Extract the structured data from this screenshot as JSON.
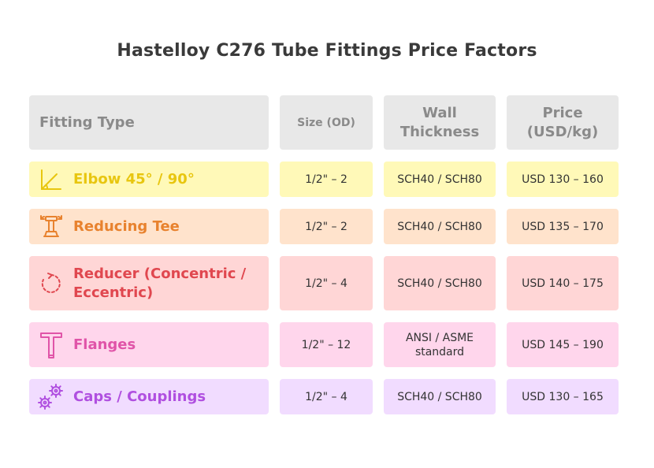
{
  "title": "Hastelloy C276 Tube Fittings Price Factors",
  "headers": {
    "fitting_type": "Fitting Type",
    "size": "Size (OD)",
    "wall_thickness": "Wall Thickness",
    "price": "Price (USD/kg)"
  },
  "rows": [
    {
      "icon": "angle-icon",
      "fitting_type": "Elbow 45° / 90°",
      "size": "1/2\" – 2",
      "wall_thickness": "SCH40 / SCH80",
      "price": "USD 130 – 160",
      "bg": "#fff9b8",
      "accent": "#e8c60f"
    },
    {
      "icon": "tee-icon",
      "fitting_type": "Reducing Tee",
      "size": "1/2\" – 2",
      "wall_thickness": "SCH40 / SCH80",
      "price": "USD 135 – 170",
      "bg": "#ffe3cc",
      "accent": "#e8822e"
    },
    {
      "icon": "rotate-icon",
      "fitting_type": "Reducer (Concentric / Eccentric)",
      "size": "1/2\" – 4",
      "wall_thickness": "SCH40 / SCH80",
      "price": "USD 140 – 175",
      "bg": "#ffd6d6",
      "accent": "#e0474f"
    },
    {
      "icon": "t-pipe-icon",
      "fitting_type": "Flanges",
      "size": "1/2\" – 12",
      "wall_thickness": "ANSI / ASME standard",
      "price": "USD 145 – 190",
      "bg": "#ffd6ec",
      "accent": "#e054a8"
    },
    {
      "icon": "gears-icon",
      "fitting_type": "Caps / Couplings",
      "size": "1/2\" – 4",
      "wall_thickness": "SCH40 / SCH80",
      "price": "USD 130 – 165",
      "bg": "#f1dcff",
      "accent": "#b04fe0"
    }
  ]
}
